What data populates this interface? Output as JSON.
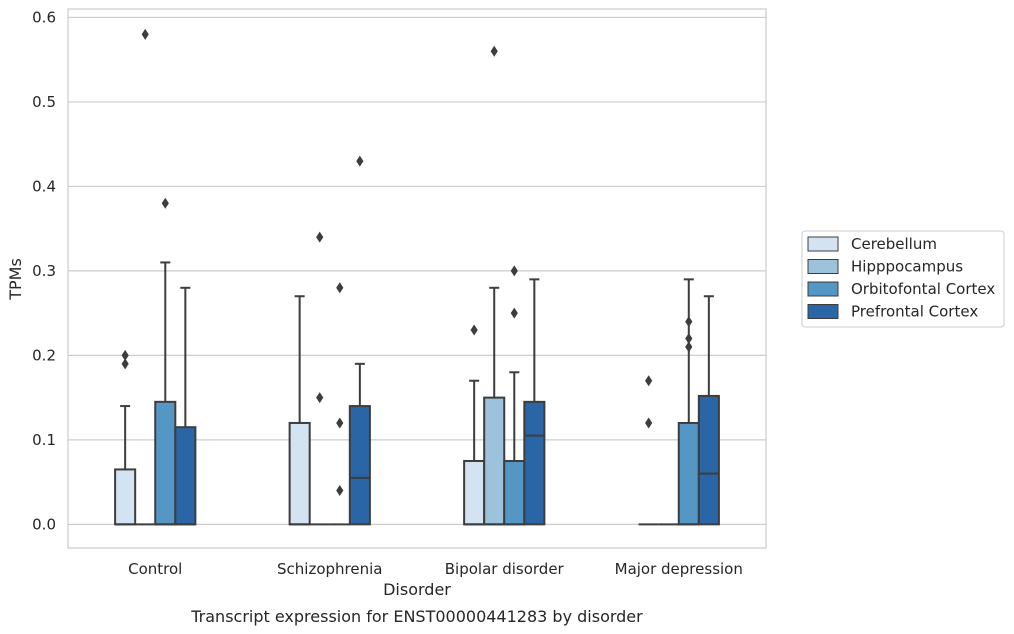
{
  "chart_data": {
    "type": "boxplot",
    "title": "Transcript expression for ENST00000441283 by disorder",
    "xlabel": "Disorder",
    "ylabel": "TPMs",
    "ylim": [
      -0.028,
      0.61
    ],
    "yticks": [
      "0.0",
      "0.1",
      "0.2",
      "0.3",
      "0.4",
      "0.5",
      "0.6"
    ],
    "grid": "horizontal",
    "legend_position": "right",
    "categories": [
      "Control",
      "Schizophrenia",
      "Bipolar disorder",
      "Major depression"
    ],
    "series": [
      {
        "name": "Cerebellum",
        "color": "#d3e3f2",
        "boxes": [
          {
            "min": 0,
            "q1": 0,
            "median": 0,
            "q3": 0.065,
            "max": 0.14,
            "outliers": [
              0.19,
              0.2
            ]
          },
          {
            "min": 0,
            "q1": 0,
            "median": 0,
            "q3": 0.12,
            "max": 0.27,
            "outliers": []
          },
          {
            "min": 0,
            "q1": 0,
            "median": 0,
            "q3": 0.075,
            "max": 0.17,
            "outliers": [
              0.23
            ]
          },
          {
            "min": 0,
            "q1": 0,
            "median": 0,
            "q3": 0,
            "max": 0,
            "outliers": [
              0.12,
              0.17
            ]
          }
        ]
      },
      {
        "name": "Hipppocampus",
        "color": "#9dc2db",
        "boxes": [
          {
            "min": 0,
            "q1": 0,
            "median": 0,
            "q3": 0,
            "max": 0,
            "outliers": [
              0.58
            ]
          },
          {
            "min": 0,
            "q1": 0,
            "median": 0,
            "q3": 0,
            "max": 0,
            "outliers": [
              0.34,
              0.15
            ]
          },
          {
            "min": 0,
            "q1": 0,
            "median": 0,
            "q3": 0.15,
            "max": 0.28,
            "outliers": [
              0.56
            ]
          },
          {
            "min": 0,
            "q1": 0,
            "median": 0,
            "q3": 0,
            "max": 0,
            "outliers": []
          }
        ]
      },
      {
        "name": "Orbitofontal Cortex",
        "color": "#5497c4",
        "boxes": [
          {
            "min": 0,
            "q1": 0,
            "median": 0,
            "q3": 0.145,
            "max": 0.31,
            "outliers": [
              0.38
            ]
          },
          {
            "min": 0,
            "q1": 0,
            "median": 0,
            "q3": 0,
            "max": 0,
            "outliers": [
              0.28,
              0.12,
              0.04
            ]
          },
          {
            "min": 0,
            "q1": 0,
            "median": 0,
            "q3": 0.075,
            "max": 0.18,
            "outliers": [
              0.25,
              0.3
            ]
          },
          {
            "min": 0,
            "q1": 0,
            "median": 0,
            "q3": 0.12,
            "max": 0.29,
            "outliers": [
              0.24,
              0.22,
              0.21
            ]
          }
        ]
      },
      {
        "name": "Prefrontal Cortex",
        "color": "#2a66a6",
        "boxes": [
          {
            "min": 0,
            "q1": 0,
            "median": 0,
            "q3": 0.115,
            "max": 0.28,
            "outliers": []
          },
          {
            "min": 0,
            "q1": 0,
            "median": 0.055,
            "q3": 0.14,
            "max": 0.19,
            "outliers": [
              0.43
            ]
          },
          {
            "min": 0,
            "q1": 0,
            "median": 0.105,
            "q3": 0.145,
            "max": 0.29,
            "outliers": []
          },
          {
            "min": 0,
            "q1": 0,
            "median": 0.06,
            "q3": 0.152,
            "max": 0.27,
            "outliers": []
          }
        ]
      }
    ]
  }
}
